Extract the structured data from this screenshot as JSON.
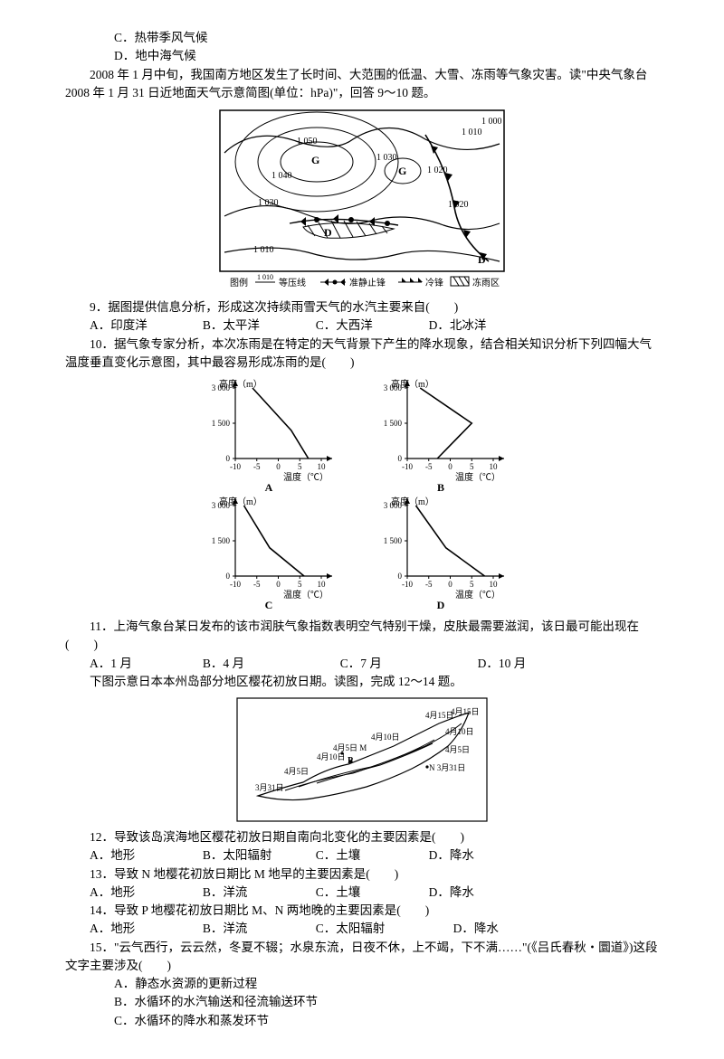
{
  "opts78": {
    "c": "C．热带季风气候",
    "d": "D．地中海气候"
  },
  "intro910": "　　2008 年 1 月中旬，我国南方地区发生了长时间、大范围的低温、大雪、冻雨等气象灾害。读\"中央气象台 2008 年 1 月 31 日近地面天气示意简图(单位：hPa)\"，回答 9～10 题。",
  "fig1": {
    "legend": {
      "isobar": "图例√1 010√等压线",
      "stationary": "准静止锋",
      "cold": "冷锋",
      "freeze": "冻雨区"
    },
    "iso_values": [
      "1 000",
      "1 010",
      "1 020",
      "1 030",
      "1 040",
      "1 050"
    ],
    "labels": [
      "G",
      "G",
      "D",
      "D"
    ],
    "stroke": "#000000",
    "bg": "#ffffff"
  },
  "q9": {
    "stem": "　　9．据图提供信息分析，形成这次持续雨雪天气的水汽主要来自(　　)",
    "a": "A．印度洋",
    "b": "B．太平洋",
    "c": "C．大西洋",
    "d": "D．北冰洋"
  },
  "q10": {
    "stem": "　　10．据气象专家分析，本次冻雨是在特定的天气背景下产生的降水现象，结合相关知识分析下列四幅大气温度垂直变化示意图，其中最容易形成冻雨的是(　　)",
    "chart": {
      "ylabel": "高度（m）",
      "xlabel": "温度（℃）",
      "yticks": [
        0,
        1500,
        3000
      ],
      "xticks": [
        -10,
        -5,
        0,
        5,
        10
      ],
      "axis_color": "#000000",
      "bg": "#ffffff",
      "line_color": "#000000",
      "labels": {
        "A": "A",
        "B": "B",
        "C": "C",
        "D": "D"
      },
      "series": {
        "A": [
          [
            -6,
            3000
          ],
          [
            3,
            1200
          ],
          [
            7,
            0
          ]
        ],
        "B": [
          [
            -7,
            3000
          ],
          [
            5,
            1500
          ],
          [
            -3,
            0
          ]
        ],
        "C": [
          [
            -8,
            3000
          ],
          [
            -2,
            1200
          ],
          [
            6,
            0
          ]
        ],
        "D": [
          [
            -8,
            3000
          ],
          [
            -1,
            1200
          ],
          [
            8,
            0
          ]
        ]
      }
    }
  },
  "q11": {
    "stem": "　　11．上海气象台某日发布的该市润肤气象指数表明空气特别干燥，皮肤最需要滋润，该日最可能出现在(　　)",
    "a": "A．1 月",
    "b": "B．4 月",
    "c": "C．7 月",
    "d": "D．10 月"
  },
  "intro1214": "　　下图示意日本本州岛部分地区樱花初放日期。读图，完成 12～14 题。",
  "fig2": {
    "labels": [
      "3月31日",
      "4月5日",
      "4月10日",
      "4月15日",
      "4月5日 M",
      "N 3月31日",
      "P",
      "4月10日",
      "4月15日"
    ],
    "stroke": "#000000",
    "bg": "#ffffff"
  },
  "q12": {
    "stem": "　　12．导致该岛滨海地区樱花初放日期自南向北变化的主要因素是(　　)",
    "a": "A．地形",
    "b": "B．太阳辐射",
    "c": "C．土壤",
    "d": "D．降水"
  },
  "q13": {
    "stem": "　　13．导致 N 地樱花初放日期比 M 地早的主要因素是(　　)",
    "a": "A．地形",
    "b": "B．洋流",
    "c": "C．土壤",
    "d": "D．降水"
  },
  "q14": {
    "stem": "　　14．导致 P 地樱花初放日期比 M、N 两地晚的主要因素是(　　)",
    "a": "A．地形",
    "b": "B．洋流",
    "c": "C．太阳辐射",
    "d": "D．降水"
  },
  "q15": {
    "stem": "　　15．\"云气西行，云云然，冬夏不辍；水泉东流，日夜不休，上不竭，下不满……\"(《吕氏春秋・圜道》)这段文字主要涉及(　　)",
    "a": "A．静态水资源的更新过程",
    "b": "B．水循环的水汽输送和径流输送环节",
    "c": "C．水循环的降水和蒸发环节"
  }
}
